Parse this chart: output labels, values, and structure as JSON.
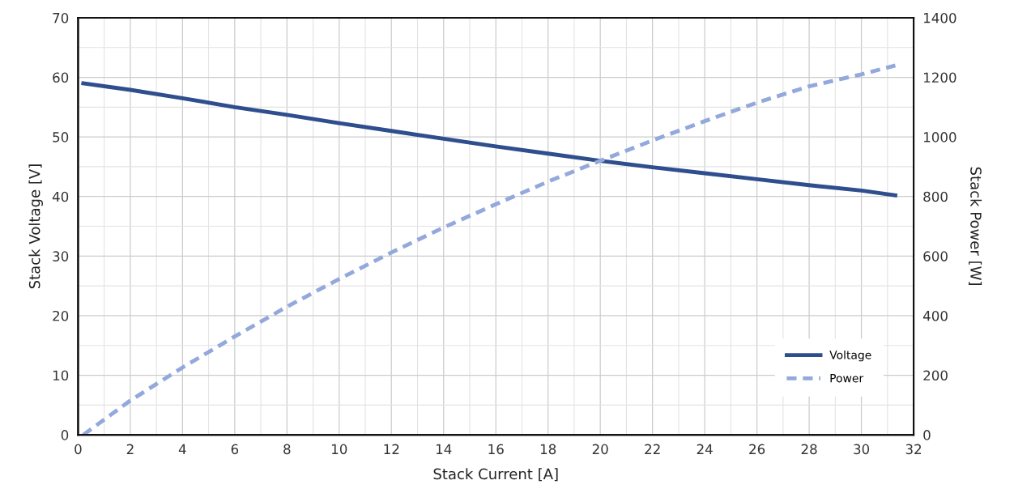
{
  "chart_data": {
    "type": "line",
    "xlabel": "Stack Current [A]",
    "ylabel": "Stack Voltage [V]",
    "y2label": "Stack Power [W]",
    "x": [
      0.2,
      2,
      4,
      6,
      8,
      10,
      12,
      14,
      16,
      18,
      20,
      22,
      24,
      26,
      28,
      30,
      31.3
    ],
    "series": [
      {
        "name": "Voltage",
        "color": "#2f4e8e",
        "line_style": "solid",
        "values": [
          59,
          57.9,
          56.5,
          55,
          53.7,
          52.3,
          51,
          49.7,
          48.4,
          47.2,
          46,
          44.9,
          43.9,
          42.9,
          41.9,
          41,
          40.2
        ]
      },
      {
        "name": "Power",
        "color": "#93a9dc",
        "line_style": "dashed",
        "axis": "y2",
        "values": [
          0,
          115,
          226,
          330,
          430,
          523,
          612,
          696,
          774,
          850,
          920,
          988,
          1053,
          1115,
          1170,
          1210,
          1240
        ]
      }
    ],
    "xlim": [
      0,
      32
    ],
    "xticks": [
      0,
      2,
      4,
      6,
      8,
      10,
      12,
      14,
      16,
      18,
      20,
      22,
      24,
      26,
      28,
      30,
      32
    ],
    "ylim": [
      0,
      70
    ],
    "yticks": [
      0,
      10,
      20,
      30,
      40,
      50,
      60,
      70
    ],
    "y2lim": [
      0,
      1400
    ],
    "y2ticks": [
      0,
      200,
      400,
      600,
      800,
      1000,
      1200,
      1400
    ],
    "grid": true,
    "legend": "bottom right"
  }
}
